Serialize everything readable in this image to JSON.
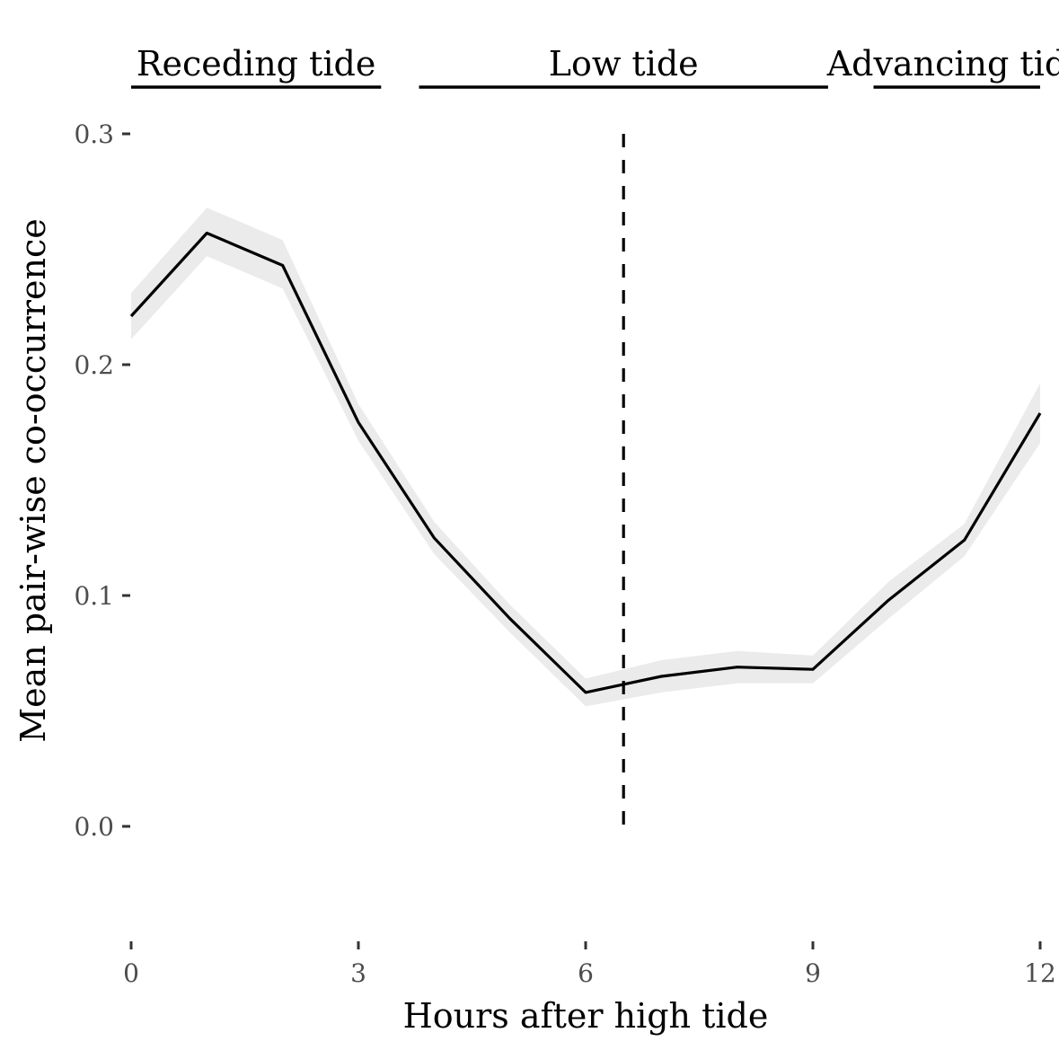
{
  "chart_data": {
    "type": "line",
    "title": "",
    "xlabel": "Hours after high tide",
    "ylabel": "Mean pair-wise co-occurrence",
    "xlim": [
      0,
      12
    ],
    "ylim": [
      -0.05,
      0.3
    ],
    "x_ticks": [
      0,
      3,
      6,
      9,
      12
    ],
    "x_tick_labels": [
      "0",
      "3",
      "6",
      "9",
      "12"
    ],
    "y_ticks": [
      0.0,
      0.1,
      0.2,
      0.3
    ],
    "y_tick_labels": [
      "0.0",
      "0.1",
      "0.2",
      "0.3"
    ],
    "grid": false,
    "series": [
      {
        "x": [
          0,
          1,
          2,
          3,
          4,
          5,
          6,
          7,
          8,
          9,
          10,
          11,
          12
        ],
        "values": [
          0.221,
          0.257,
          0.243,
          0.175,
          0.125,
          0.09,
          0.058,
          0.065,
          0.069,
          0.068,
          0.098,
          0.124,
          0.179
        ],
        "lower": [
          0.211,
          0.247,
          0.233,
          0.167,
          0.118,
          0.084,
          0.052,
          0.058,
          0.062,
          0.062,
          0.09,
          0.117,
          0.166
        ],
        "upper": [
          0.231,
          0.268,
          0.254,
          0.183,
          0.132,
          0.096,
          0.064,
          0.072,
          0.076,
          0.074,
          0.106,
          0.131,
          0.192
        ],
        "color": "#000000",
        "band_color": "#ebebeb"
      }
    ],
    "reference_line": {
      "x": 6.5,
      "y_from": 0.0,
      "y_to": 0.3,
      "style": "dashed",
      "color": "#000000"
    },
    "annotations": [
      {
        "label": "Receding tide",
        "x_start": 0.0,
        "x_end": 3.3
      },
      {
        "label": "Low tide",
        "x_start": 3.8,
        "x_end": 9.2
      },
      {
        "label": "Advancing tide",
        "x_start": 9.8,
        "x_end": 12.0
      }
    ]
  }
}
